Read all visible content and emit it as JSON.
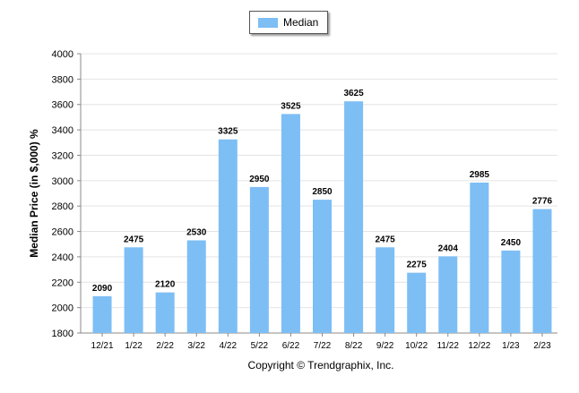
{
  "chart_data": {
    "type": "bar",
    "categories": [
      "12/21",
      "1/22",
      "2/22",
      "3/22",
      "4/22",
      "5/22",
      "6/22",
      "7/22",
      "8/22",
      "9/22",
      "10/22",
      "11/22",
      "12/22",
      "1/23",
      "2/23"
    ],
    "series": [
      {
        "name": "Median",
        "values": [
          2090,
          2475,
          2120,
          2530,
          3325,
          2950,
          3525,
          2850,
          3625,
          2475,
          2275,
          2404,
          2985,
          2450,
          2776
        ]
      }
    ],
    "ylabel": "Median Price (in $,000) %",
    "xlabel": "",
    "ylim": [
      1800,
      4000
    ],
    "yticks": [
      1800,
      2000,
      2200,
      2400,
      2600,
      2800,
      3000,
      3200,
      3400,
      3600,
      3800,
      4000
    ],
    "legend": "top-center",
    "grid": true,
    "data_labels": true,
    "bar_color": "#7dbef5"
  },
  "footer": {
    "copyright": "Copyright © Trendgraphix, Inc."
  }
}
